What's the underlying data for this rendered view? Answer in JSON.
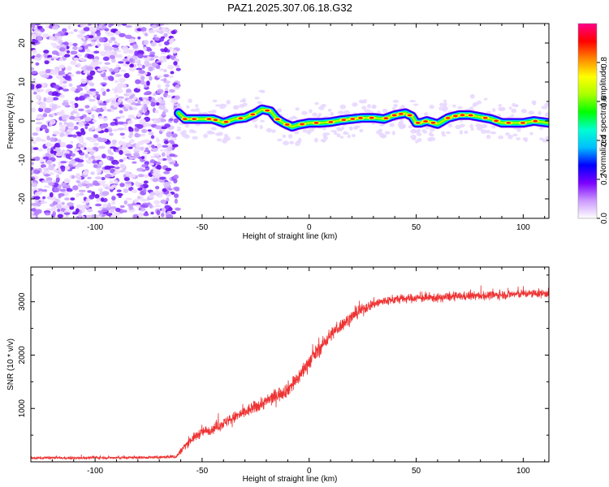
{
  "title": "PAZ1.2025.307.06.18.G32",
  "chart_data": [
    {
      "type": "heatmap",
      "name": "spectrogram",
      "xlabel": "Height of straight line (km)",
      "ylabel": "Frequency (Hz)",
      "xlim": [
        -130,
        112
      ],
      "ylim": [
        -25,
        25
      ],
      "xticks": [
        -100,
        -50,
        0,
        50,
        100
      ],
      "xtick_labels": [
        "-100",
        "-50",
        "0",
        "50",
        "100"
      ],
      "yticks": [
        -20,
        -10,
        0,
        10,
        20
      ],
      "ytick_labels": [
        "-20",
        "-10",
        "0",
        "10",
        "20"
      ],
      "noise_region_x": [
        -130,
        -61
      ],
      "ridge": {
        "x": [
          -62,
          -58,
          -50,
          -45,
          -40,
          -35,
          -30,
          -25,
          -22,
          -18,
          -15,
          -12,
          -8,
          -5,
          0,
          5,
          10,
          15,
          20,
          25,
          30,
          35,
          40,
          45,
          48,
          50,
          52,
          55,
          60,
          65,
          70,
          75,
          80,
          85,
          90,
          95,
          100,
          105,
          112
        ],
        "freq": [
          2.5,
          0.5,
          0.5,
          0.5,
          -0.5,
          0.5,
          0.8,
          2.0,
          3.0,
          2.5,
          0.5,
          -0.5,
          -1.5,
          -1.0,
          -0.5,
          -0.5,
          -0.3,
          0.2,
          0.5,
          0.8,
          0.8,
          0.5,
          1.5,
          2.0,
          1.2,
          -0.5,
          -0.5,
          0.0,
          -0.8,
          0.8,
          1.5,
          1.5,
          1.0,
          0.5,
          -0.5,
          -0.5,
          -0.5,
          0.0,
          -0.5
        ]
      },
      "colorbar": {
        "label": "Normalized spectral amplitude",
        "range": [
          0,
          1
        ],
        "ticks": [
          0.0,
          0.2,
          0.4,
          0.6,
          0.8
        ],
        "tick_labels": [
          "0.0",
          "0.2",
          "0.4",
          "0.6",
          "0.8"
        ],
        "colors": [
          "#ffffff",
          "#cc99ff",
          "#7a00ff",
          "#0000ff",
          "#00bfff",
          "#00ffd0",
          "#00ff00",
          "#aaff00",
          "#ffff00",
          "#ff8800",
          "#ff0000",
          "#ff0088"
        ]
      }
    },
    {
      "type": "line",
      "name": "snr",
      "xlabel": "Height of straight line (km)",
      "ylabel": "SNR (10 * v/v)",
      "xlim": [
        -130,
        112
      ],
      "ylim": [
        0,
        3650
      ],
      "xticks": [
        -100,
        -50,
        0,
        50,
        100
      ],
      "xtick_labels": [
        "-100",
        "-50",
        "0",
        "50",
        "100"
      ],
      "yticks": [
        1000,
        2000,
        3000
      ],
      "ytick_labels": [
        "1000",
        "2000",
        "3000"
      ],
      "color": "#ee3333",
      "series": [
        {
          "name": "SNR",
          "x": [
            -130,
            -120,
            -110,
            -100,
            -90,
            -80,
            -70,
            -62,
            -58,
            -55,
            -50,
            -45,
            -40,
            -35,
            -30,
            -25,
            -20,
            -15,
            -10,
            -5,
            0,
            5,
            10,
            15,
            20,
            25,
            30,
            35,
            40,
            45,
            50,
            55,
            60,
            65,
            70,
            75,
            80,
            85,
            90,
            95,
            100,
            105,
            112
          ],
          "mean": [
            70,
            75,
            70,
            80,
            75,
            80,
            85,
            100,
            300,
            420,
            560,
            620,
            720,
            830,
            930,
            1030,
            1130,
            1250,
            1360,
            1580,
            1880,
            2130,
            2380,
            2560,
            2720,
            2860,
            2960,
            3010,
            3040,
            3060,
            3070,
            3070,
            3070,
            3090,
            3100,
            3110,
            3110,
            3120,
            3130,
            3140,
            3150,
            3150,
            3160
          ],
          "noise": [
            45,
            45,
            45,
            45,
            45,
            45,
            45,
            70,
            130,
            140,
            160,
            170,
            180,
            190,
            200,
            210,
            220,
            240,
            240,
            250,
            260,
            240,
            230,
            210,
            200,
            180,
            170,
            160,
            150,
            140,
            140,
            140,
            140,
            140,
            140,
            140,
            140,
            140,
            140,
            140,
            140,
            140,
            140
          ]
        }
      ]
    }
  ]
}
